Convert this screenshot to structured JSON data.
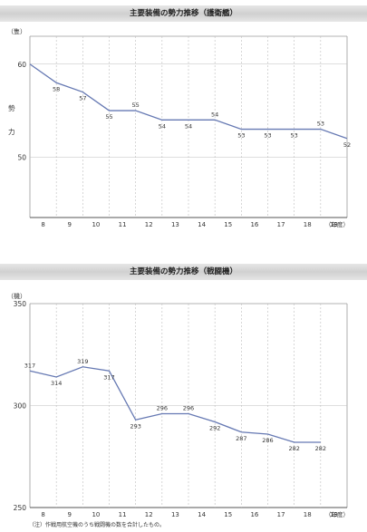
{
  "chart_data": [
    {
      "type": "line",
      "title": "主要装備の勢力推移（護衛艦）",
      "unit": "（隻）",
      "ylabel_chars": [
        "勢",
        "力"
      ],
      "x_unit": "（年度）",
      "categories": [
        "8",
        "9",
        "10",
        "11",
        "12",
        "13",
        "14",
        "15",
        "16",
        "17",
        "18",
        "19"
      ],
      "values": [
        60,
        58,
        57,
        55,
        55,
        54,
        54,
        54,
        53,
        53,
        53,
        53,
        52
      ],
      "x": [
        7.5,
        8.5,
        9.5,
        10.5,
        11.5,
        12.5,
        13.5,
        14.5,
        15.5,
        16.5,
        17.5,
        18.5,
        19.5
      ],
      "data_labels": [
        "",
        "58",
        "57",
        "55",
        "55",
        "54",
        "54",
        "54",
        "53",
        "53",
        "53",
        "53",
        "52"
      ],
      "yticks": [
        50,
        60
      ],
      "ylim": [
        43.5,
        63
      ],
      "color": "#6679b3"
    },
    {
      "type": "line",
      "title": "主要装備の勢力推移（戦闘機）",
      "unit": "（機）",
      "x_unit": "（年度）",
      "categories": [
        "8",
        "9",
        "10",
        "11",
        "12",
        "13",
        "14",
        "15",
        "16",
        "17",
        "18",
        "19"
      ],
      "values": [
        317,
        314,
        319,
        317,
        293,
        296,
        296,
        292,
        287,
        286,
        282,
        282
      ],
      "x": [
        7.5,
        8.5,
        9.5,
        10.5,
        11.5,
        12.5,
        13.5,
        14.5,
        15.5,
        16.5,
        17.5,
        18.5
      ],
      "data_labels": [
        "317",
        "314",
        "319",
        "317",
        "293",
        "296",
        "296",
        "292",
        "287",
        "286",
        "282",
        "282"
      ],
      "yticks": [
        250,
        300,
        350
      ],
      "ylim": [
        250,
        350
      ],
      "color": "#6679b3"
    }
  ],
  "footnote": "（注）作戦用航空機のうち戦闘機の数を合計したもの。"
}
